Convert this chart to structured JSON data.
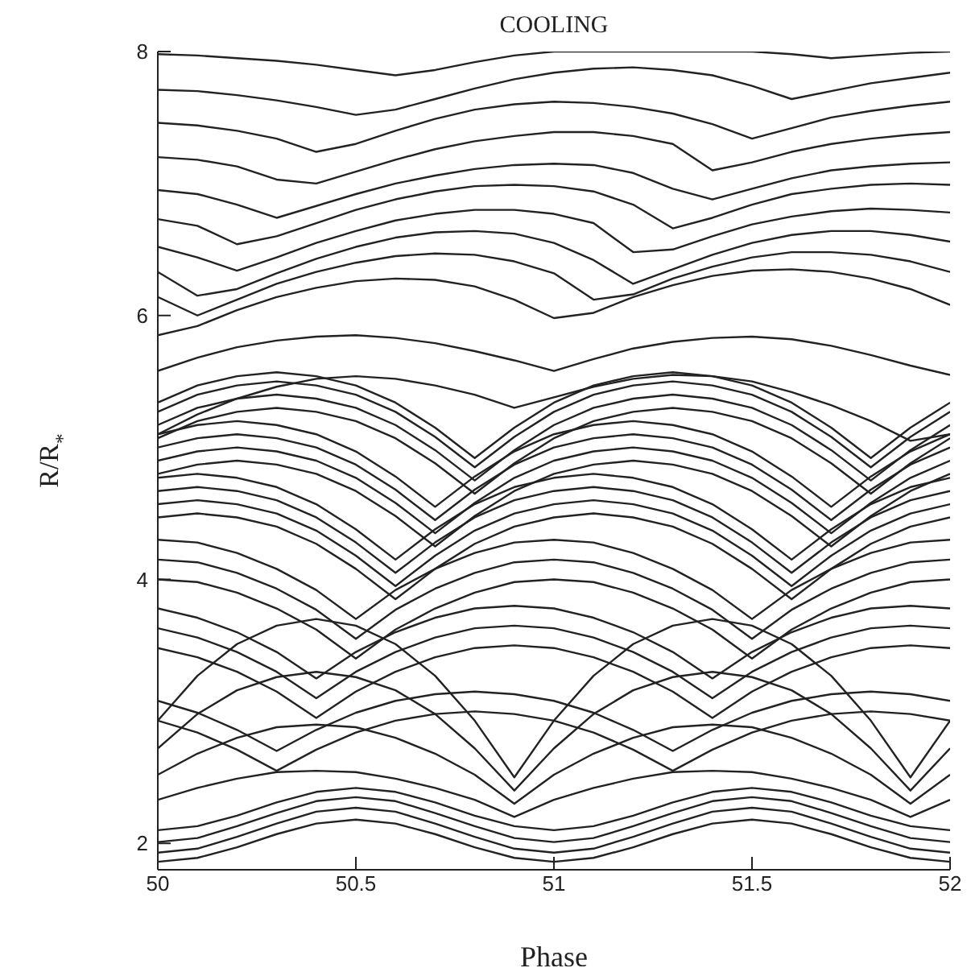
{
  "chart_data": {
    "type": "line",
    "title": "COOLING",
    "xlabel": "Phase",
    "ylabel": "R/R$_{*}$",
    "color": "#222222",
    "x": [
      50,
      50.1,
      50.2,
      50.3,
      50.4,
      50.5,
      50.6,
      50.7,
      50.8,
      50.9,
      51,
      51.1,
      51.2,
      51.3,
      51.4,
      51.5,
      51.6,
      51.7,
      51.8,
      51.9,
      52
    ],
    "xlim": [
      50,
      52
    ],
    "xticks": [
      50,
      50.5,
      51,
      51.5,
      52
    ],
    "ylim": [
      1.8,
      8
    ],
    "yticks": [
      2,
      4,
      6,
      8
    ],
    "series": [
      {
        "values": [
          7.98,
          7.97,
          7.95,
          7.93,
          7.9,
          7.86,
          7.82,
          7.86,
          7.92,
          7.97,
          8,
          8,
          8,
          8,
          8,
          8,
          7.98,
          7.95,
          7.97,
          7.99,
          8
        ]
      },
      {
        "values": [
          7.71,
          7.7,
          7.67,
          7.63,
          7.58,
          7.52,
          7.56,
          7.64,
          7.72,
          7.79,
          7.84,
          7.87,
          7.88,
          7.86,
          7.82,
          7.74,
          7.64,
          7.7,
          7.76,
          7.8,
          7.84
        ]
      },
      {
        "values": [
          7.46,
          7.44,
          7.4,
          7.34,
          7.24,
          7.3,
          7.4,
          7.49,
          7.56,
          7.6,
          7.62,
          7.61,
          7.58,
          7.53,
          7.45,
          7.34,
          7.42,
          7.5,
          7.55,
          7.59,
          7.62
        ]
      },
      {
        "values": [
          7.2,
          7.18,
          7.13,
          7.03,
          7,
          7.09,
          7.18,
          7.26,
          7.32,
          7.36,
          7.39,
          7.39,
          7.36,
          7.3,
          7.1,
          7.16,
          7.24,
          7.3,
          7.34,
          7.37,
          7.39
        ]
      },
      {
        "values": [
          6.95,
          6.92,
          6.84,
          6.74,
          6.83,
          6.92,
          7,
          7.06,
          7.11,
          7.14,
          7.15,
          7.14,
          7.08,
          6.96,
          6.88,
          6.96,
          7.04,
          7.1,
          7.13,
          7.15,
          7.16
        ]
      },
      {
        "values": [
          6.73,
          6.68,
          6.54,
          6.6,
          6.7,
          6.8,
          6.88,
          6.94,
          6.98,
          6.99,
          6.98,
          6.94,
          6.84,
          6.66,
          6.74,
          6.84,
          6.92,
          6.96,
          6.99,
          7,
          6.99
        ]
      },
      {
        "values": [
          6.52,
          6.44,
          6.34,
          6.44,
          6.55,
          6.64,
          6.72,
          6.77,
          6.8,
          6.8,
          6.77,
          6.7,
          6.48,
          6.5,
          6.6,
          6.69,
          6.75,
          6.79,
          6.81,
          6.8,
          6.78
        ]
      },
      {
        "values": [
          6.33,
          6.15,
          6.2,
          6.32,
          6.43,
          6.52,
          6.59,
          6.63,
          6.64,
          6.62,
          6.55,
          6.42,
          6.24,
          6.35,
          6.46,
          6.55,
          6.61,
          6.64,
          6.64,
          6.61,
          6.56
        ]
      },
      {
        "values": [
          6.14,
          6,
          6.12,
          6.24,
          6.33,
          6.4,
          6.45,
          6.47,
          6.46,
          6.41,
          6.32,
          6.12,
          6.16,
          6.28,
          6.37,
          6.44,
          6.48,
          6.48,
          6.46,
          6.41,
          6.33
        ]
      },
      {
        "values": [
          5.85,
          5.92,
          6.04,
          6.14,
          6.21,
          6.26,
          6.28,
          6.27,
          6.22,
          6.12,
          5.98,
          6.02,
          6.14,
          6.23,
          6.3,
          6.34,
          6.35,
          6.33,
          6.28,
          6.2,
          6.08
        ]
      },
      {
        "values": [
          5.58,
          5.68,
          5.76,
          5.81,
          5.84,
          5.85,
          5.83,
          5.79,
          5.73,
          5.66,
          5.58,
          5.67,
          5.75,
          5.8,
          5.83,
          5.84,
          5.82,
          5.77,
          5.7,
          5.62,
          5.55
        ]
      },
      {
        "values": [
          5.1,
          5.25,
          5.37,
          5.46,
          5.52,
          5.54,
          5.52,
          5.47,
          5.4,
          5.3,
          5.38,
          5.46,
          5.52,
          5.55,
          5.54,
          5.5,
          5.42,
          5.32,
          5.2,
          5.05,
          5.1
        ]
      },
      {
        "values": [
          5.34,
          5.47,
          5.54,
          5.57,
          5.54,
          5.47,
          5.34,
          5.15,
          4.92,
          5.15,
          5.34,
          5.47,
          5.54,
          5.57,
          5.54,
          5.47,
          5.34,
          5.15,
          4.92,
          5.15,
          5.34
        ]
      },
      {
        "values": [
          5.27,
          5.4,
          5.47,
          5.5,
          5.47,
          5.4,
          5.27,
          5.08,
          4.85,
          5.08,
          5.27,
          5.4,
          5.47,
          5.5,
          5.47,
          5.4,
          5.27,
          5.08,
          4.85,
          5.08,
          5.27
        ]
      },
      {
        "values": [
          5.17,
          5.3,
          5.37,
          5.4,
          5.37,
          5.3,
          5.17,
          4.98,
          4.75,
          4.98,
          5.17,
          5.3,
          5.37,
          5.4,
          5.37,
          5.3,
          5.17,
          4.98,
          4.75,
          4.98,
          5.17
        ]
      },
      {
        "values": [
          5.07,
          5.2,
          5.27,
          5.3,
          5.27,
          5.2,
          5.07,
          4.88,
          4.65,
          4.88,
          5.07,
          5.2,
          5.27,
          5.3,
          5.27,
          5.2,
          5.07,
          4.88,
          4.65,
          4.88,
          5.07
        ]
      },
      {
        "values": [
          5.1,
          5.17,
          5.2,
          5.17,
          5.1,
          4.97,
          4.78,
          4.55,
          4.78,
          4.97,
          5.1,
          5.17,
          5.2,
          5.17,
          5.1,
          4.97,
          4.78,
          4.55,
          4.78,
          4.97,
          5.1
        ]
      },
      {
        "values": [
          5,
          5.07,
          5.1,
          5.07,
          5,
          4.87,
          4.68,
          4.45,
          4.68,
          4.87,
          5,
          5.07,
          5.1,
          5.07,
          5,
          4.87,
          4.68,
          4.45,
          4.68,
          4.87,
          5
        ]
      },
      {
        "values": [
          4.9,
          4.97,
          5,
          4.97,
          4.9,
          4.77,
          4.58,
          4.35,
          4.58,
          4.77,
          4.9,
          4.97,
          5,
          4.97,
          4.9,
          4.77,
          4.58,
          4.35,
          4.58,
          4.77,
          4.9
        ]
      },
      {
        "values": [
          4.8,
          4.87,
          4.9,
          4.87,
          4.8,
          4.67,
          4.48,
          4.25,
          4.48,
          4.67,
          4.8,
          4.87,
          4.9,
          4.87,
          4.8,
          4.67,
          4.48,
          4.25,
          4.48,
          4.67,
          4.8
        ]
      },
      {
        "values": [
          4.77,
          4.8,
          4.77,
          4.7,
          4.57,
          4.38,
          4.15,
          4.38,
          4.57,
          4.7,
          4.77,
          4.8,
          4.77,
          4.7,
          4.57,
          4.38,
          4.15,
          4.38,
          4.57,
          4.7,
          4.77
        ]
      },
      {
        "values": [
          4.67,
          4.7,
          4.67,
          4.6,
          4.47,
          4.28,
          4.05,
          4.28,
          4.47,
          4.6,
          4.67,
          4.7,
          4.67,
          4.6,
          4.47,
          4.28,
          4.05,
          4.28,
          4.47,
          4.6,
          4.67
        ]
      },
      {
        "values": [
          4.57,
          4.6,
          4.57,
          4.5,
          4.37,
          4.18,
          3.95,
          4.18,
          4.37,
          4.5,
          4.57,
          4.6,
          4.57,
          4.5,
          4.37,
          4.18,
          3.95,
          4.18,
          4.37,
          4.5,
          4.57
        ]
      },
      {
        "values": [
          4.47,
          4.5,
          4.47,
          4.4,
          4.27,
          4.08,
          3.85,
          4.08,
          4.27,
          4.4,
          4.47,
          4.5,
          4.47,
          4.4,
          4.27,
          4.08,
          3.85,
          4.08,
          4.27,
          4.4,
          4.47
        ]
      },
      {
        "values": [
          4.3,
          4.28,
          4.2,
          4.08,
          3.92,
          3.7,
          3.92,
          4.08,
          4.2,
          4.28,
          4.3,
          4.28,
          4.2,
          4.08,
          3.92,
          3.7,
          3.92,
          4.08,
          4.2,
          4.28,
          4.3
        ]
      },
      {
        "values": [
          4.15,
          4.13,
          4.05,
          3.93,
          3.77,
          3.55,
          3.77,
          3.93,
          4.05,
          4.13,
          4.15,
          4.13,
          4.05,
          3.93,
          3.77,
          3.55,
          3.77,
          3.93,
          4.05,
          4.13,
          4.15
        ]
      },
      {
        "values": [
          4,
          3.98,
          3.9,
          3.78,
          3.62,
          3.4,
          3.62,
          3.78,
          3.9,
          3.98,
          4,
          3.98,
          3.9,
          3.78,
          3.62,
          3.4,
          3.62,
          3.78,
          3.9,
          3.98,
          4
        ]
      },
      {
        "values": [
          3.78,
          3.71,
          3.6,
          3.45,
          3.25,
          3.45,
          3.6,
          3.71,
          3.78,
          3.8,
          3.78,
          3.71,
          3.6,
          3.45,
          3.25,
          3.45,
          3.6,
          3.71,
          3.78,
          3.8,
          3.78
        ]
      },
      {
        "values": [
          3.63,
          3.56,
          3.45,
          3.3,
          3.1,
          3.3,
          3.45,
          3.56,
          3.63,
          3.65,
          3.63,
          3.56,
          3.45,
          3.3,
          3.1,
          3.3,
          3.45,
          3.56,
          3.63,
          3.65,
          3.63
        ]
      },
      {
        "values": [
          3.48,
          3.41,
          3.3,
          3.15,
          2.95,
          3.15,
          3.3,
          3.41,
          3.48,
          3.5,
          3.48,
          3.41,
          3.3,
          3.15,
          2.95,
          3.15,
          3.3,
          3.41,
          3.48,
          3.5,
          3.48
        ]
      },
      {
        "values": [
          3.08,
          2.99,
          2.86,
          2.7,
          2.86,
          2.99,
          3.08,
          3.13,
          3.15,
          3.13,
          3.08,
          2.99,
          2.86,
          2.7,
          2.86,
          2.99,
          3.08,
          3.13,
          3.15,
          3.13,
          3.08
        ]
      },
      {
        "values": [
          2.93,
          2.84,
          2.71,
          2.55,
          2.71,
          2.84,
          2.93,
          2.98,
          3,
          2.98,
          2.93,
          2.84,
          2.71,
          2.55,
          2.71,
          2.84,
          2.93,
          2.98,
          3,
          2.98,
          2.93
        ]
      },
      {
        "values": [
          2.93,
          3.27,
          3.51,
          3.65,
          3.7,
          3.65,
          3.51,
          3.27,
          2.93,
          2.5,
          2.93,
          3.27,
          3.51,
          3.65,
          3.7,
          3.65,
          3.51,
          3.27,
          2.93,
          2.5,
          2.93
        ]
      },
      {
        "values": [
          2.72,
          2.98,
          3.16,
          3.26,
          3.3,
          3.26,
          3.16,
          2.98,
          2.72,
          2.4,
          2.72,
          2.98,
          3.16,
          3.26,
          3.3,
          3.26,
          3.16,
          2.98,
          2.72,
          2.4,
          2.72
        ]
      },
      {
        "values": [
          2.52,
          2.68,
          2.8,
          2.88,
          2.9,
          2.88,
          2.8,
          2.68,
          2.52,
          2.3,
          2.52,
          2.68,
          2.8,
          2.88,
          2.9,
          2.88,
          2.8,
          2.68,
          2.52,
          2.3,
          2.52
        ]
      },
      {
        "values": [
          2.33,
          2.42,
          2.49,
          2.54,
          2.55,
          2.54,
          2.49,
          2.42,
          2.33,
          2.2,
          2.33,
          2.42,
          2.49,
          2.54,
          2.55,
          2.54,
          2.49,
          2.42,
          2.33,
          2.2,
          2.33
        ]
      },
      {
        "values": [
          2.1,
          2.13,
          2.21,
          2.31,
          2.39,
          2.42,
          2.39,
          2.31,
          2.21,
          2.13,
          2.1,
          2.13,
          2.21,
          2.31,
          2.39,
          2.42,
          2.39,
          2.31,
          2.21,
          2.13,
          2.1
        ]
      },
      {
        "values": [
          2.01,
          2.04,
          2.13,
          2.23,
          2.32,
          2.35,
          2.32,
          2.23,
          2.13,
          2.04,
          2.01,
          2.04,
          2.13,
          2.23,
          2.32,
          2.35,
          2.32,
          2.23,
          2.13,
          2.04,
          2.01
        ]
      },
      {
        "values": [
          1.93,
          1.96,
          2.05,
          2.15,
          2.24,
          2.27,
          2.24,
          2.15,
          2.05,
          1.96,
          1.93,
          1.96,
          2.05,
          2.15,
          2.24,
          2.27,
          2.24,
          2.15,
          2.05,
          1.96,
          1.93
        ]
      },
      {
        "values": [
          1.86,
          1.89,
          1.97,
          2.07,
          2.15,
          2.18,
          2.15,
          2.07,
          1.97,
          1.89,
          1.86,
          1.89,
          1.97,
          2.07,
          2.15,
          2.18,
          2.15,
          2.07,
          1.97,
          1.89,
          1.86
        ]
      }
    ]
  }
}
